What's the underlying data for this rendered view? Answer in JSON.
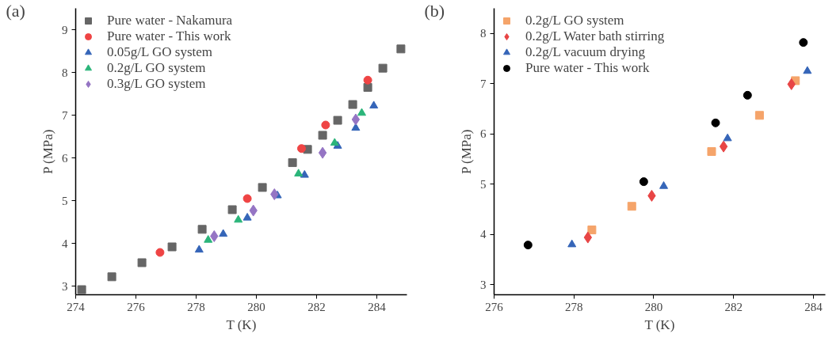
{
  "chart_data": [
    {
      "type": "scatter",
      "annotations": [
        "(a)"
      ],
      "xlabel": "T (K)",
      "ylabel": "P (MPa)",
      "xlim": [
        274,
        285
      ],
      "ylim": [
        2.8,
        9.5
      ],
      "xticks": [
        274,
        276,
        278,
        280,
        282,
        284
      ],
      "yticks": [
        3,
        4,
        5,
        6,
        7,
        8,
        9
      ],
      "grid": false,
      "legend": "top left",
      "series": [
        {
          "name": "Pure water - Nakamura",
          "color": "#666666",
          "marker": "square",
          "x": [
            274.2,
            275.2,
            276.2,
            277.2,
            278.2,
            279.2,
            280.2,
            281.2,
            281.7,
            282.2,
            282.7,
            283.2,
            283.7,
            284.2,
            284.8
          ],
          "values": [
            2.92,
            3.22,
            3.55,
            3.92,
            4.33,
            4.79,
            5.31,
            5.89,
            6.2,
            6.53,
            6.88,
            7.25,
            7.65,
            8.1,
            8.55
          ]
        },
        {
          "name": "Pure water - This work",
          "color": "#ef4444",
          "marker": "circle",
          "x": [
            276.8,
            279.7,
            281.5,
            282.3,
            283.7
          ],
          "values": [
            3.79,
            5.05,
            6.22,
            6.77,
            7.82
          ]
        },
        {
          "name": "0.05g/L GO system",
          "color": "#3565b8",
          "marker": "triangle",
          "x": [
            278.1,
            278.9,
            279.7,
            280.7,
            281.6,
            282.7,
            283.3,
            283.9
          ],
          "values": [
            3.85,
            4.22,
            4.6,
            5.12,
            5.6,
            6.28,
            6.7,
            7.22
          ]
        },
        {
          "name": "0.2g/L GO system",
          "color": "#2bb57a",
          "marker": "triangle",
          "x": [
            278.4,
            279.4,
            281.4,
            282.6,
            283.5
          ],
          "values": [
            4.08,
            4.55,
            5.63,
            6.35,
            7.05
          ]
        },
        {
          "name": "0.3g/L GO system",
          "color": "#9575c4",
          "marker": "diamond",
          "x": [
            278.6,
            279.9,
            280.6,
            282.2,
            283.3
          ],
          "values": [
            4.17,
            4.77,
            5.15,
            6.12,
            6.9
          ]
        }
      ]
    },
    {
      "type": "scatter",
      "annotations": [
        "(b)"
      ],
      "xlabel": "T (K)",
      "ylabel": "P (MPa)",
      "xlim": [
        276,
        284.3
      ],
      "ylim": [
        2.8,
        8.5
      ],
      "xticks": [
        276,
        278,
        280,
        282,
        284
      ],
      "yticks": [
        3,
        4,
        5,
        6,
        7,
        8
      ],
      "grid": false,
      "legend": "top left",
      "series": [
        {
          "name": "0.2g/L GO system",
          "color": "#f5a46a",
          "marker": "square",
          "x": [
            278.45,
            279.45,
            281.45,
            282.65,
            283.55
          ],
          "values": [
            4.09,
            4.56,
            5.65,
            6.37,
            7.06
          ]
        },
        {
          "name": "0.2g/L Water bath stirring",
          "color": "#e84545",
          "marker": "diamond",
          "x": [
            278.35,
            279.95,
            281.75,
            283.45
          ],
          "values": [
            3.94,
            4.77,
            5.75,
            6.99
          ]
        },
        {
          "name": "0.2g/L vacuum drying",
          "color": "#3565b8",
          "marker": "triangle",
          "x": [
            277.95,
            280.25,
            281.85,
            283.85
          ],
          "values": [
            3.8,
            4.96,
            5.91,
            7.25
          ]
        },
        {
          "name": "Pure water - This work",
          "color": "#000000",
          "marker": "circle",
          "x": [
            276.85,
            279.75,
            281.55,
            282.35,
            283.75
          ],
          "values": [
            3.79,
            5.05,
            6.22,
            6.77,
            7.82
          ]
        }
      ]
    }
  ]
}
